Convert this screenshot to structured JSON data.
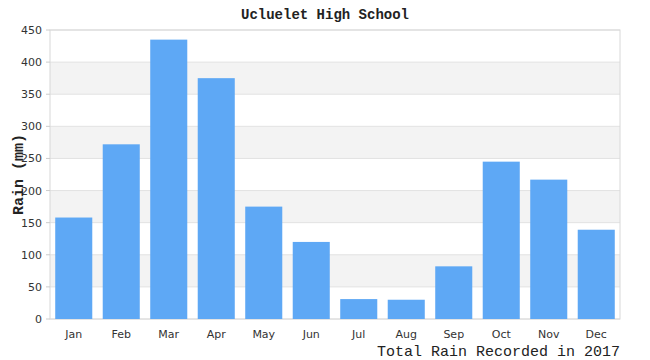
{
  "chart_data": {
    "type": "bar",
    "title": "Ucluelet High School",
    "y_label": "Rain (mm)",
    "x_label": "Total Rain Recorded in 2017",
    "categories": [
      "Jan",
      "Feb",
      "Mar",
      "Apr",
      "May",
      "Jun",
      "Jul",
      "Aug",
      "Sep",
      "Oct",
      "Nov",
      "Dec"
    ],
    "values": [
      158,
      272,
      435,
      375,
      175,
      120,
      31,
      30,
      82,
      245,
      217,
      139
    ],
    "color": "#5ea8f5",
    "ylim": [
      0,
      450
    ],
    "yticks": [
      0,
      50,
      100,
      150,
      200,
      250,
      300,
      350,
      400,
      450
    ],
    "grid": true
  }
}
